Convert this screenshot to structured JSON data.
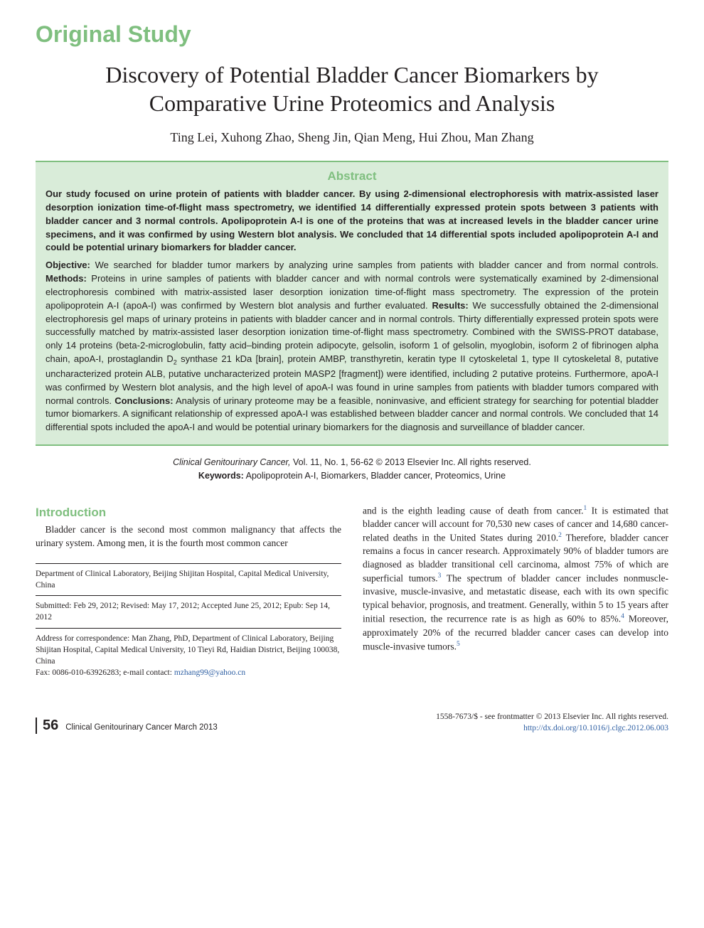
{
  "colors": {
    "accent": "#7fbf7f",
    "abstract_bg": "#d9ecd9",
    "abstract_border": "#7fbf7f",
    "link": "#2e5fa3",
    "text": "#231f20"
  },
  "header": {
    "section_label": "Original Study",
    "title": "Discovery of Potential Bladder Cancer Biomarkers by Comparative Urine Proteomics and Analysis",
    "authors": "Ting Lei, Xuhong Zhao, Sheng Jin, Qian Meng, Hui Zhou, Man Zhang"
  },
  "abstract": {
    "heading": "Abstract",
    "lead": "Our study focused on urine protein of patients with bladder cancer. By using 2-dimensional electrophoresis with matrix-assisted laser desorption ionization time-of-flight mass spectrometry, we identified 14 differentially expressed protein spots between 3 patients with bladder cancer and 3 normal controls. Apolipoprotein A-I is one of the proteins that was at increased levels in the bladder cancer urine specimens, and it was confirmed by using Western blot analysis. We concluded that 14 differential spots included apolipoprotein A-I and could be potential urinary biomarkers for bladder cancer.",
    "objective_label": "Objective:",
    "objective": " We searched for bladder tumor markers by analyzing urine samples from patients with bladder cancer and from normal controls. ",
    "methods_label": "Methods:",
    "methods": " Proteins in urine samples of patients with bladder cancer and with normal controls were systematically examined by 2-dimensional electrophoresis combined with matrix-assisted laser desorption ionization time-of-flight mass spectrometry. The expression of the protein apolipoprotein A-I (apoA-I) was confirmed by Western blot analysis and further evaluated. ",
    "results_label": "Results:",
    "results_a": " We successfully obtained the 2-dimensional electrophoresis gel maps of urinary proteins in patients with bladder cancer and in normal controls. Thirty differentially expressed protein spots were successfully matched by matrix-assisted laser desorption ionization time-of-flight mass spectrometry. Combined with the SWISS-PROT database, only 14 proteins (beta-2-microglobulin, fatty acid–binding protein adipocyte, gelsolin, isoform 1 of gelsolin, myoglobin, isoform 2 of fibrinogen alpha chain, apoA-I, prostaglandin D",
    "results_sub": "2",
    "results_b": " synthase 21 kDa [brain], protein AMBP, transthyretin, keratin type II cytoskeletal 1, type II cytoskeletal 8, putative uncharacterized protein ALB, putative uncharacterized protein MASP2 [fragment]) were identified, including 2 putative proteins. Furthermore, apoA-I was confirmed by Western blot analysis, and the high level of apoA-I was found in urine samples from patients with bladder tumors compared with normal controls. ",
    "conclusions_label": "Conclusions:",
    "conclusions": " Analysis of urinary proteome may be a feasible, noninvasive, and efficient strategy for searching for potential bladder tumor biomarkers. A significant relationship of expressed apoA-I was established between bladder cancer and normal controls. We concluded that 14 differential spots included the apoA-I and would be potential urinary biomarkers for the diagnosis and surveillance of bladder cancer."
  },
  "citation": {
    "journal": "Clinical Genitourinary Cancer,",
    "vol_info": " Vol. 11, No. 1, 56-62 © 2013 Elsevier Inc. All rights reserved.",
    "keywords_label": "Keywords:",
    "keywords": " Apolipoprotein A-I, Biomarkers, Bladder cancer, Proteomics, Urine"
  },
  "intro": {
    "heading": "Introduction",
    "p1": "Bladder cancer is the second most common malignancy that affects the urinary system. Among men, it is the fourth most common cancer",
    "p2_a": "and is the eighth leading cause of death from cancer.",
    "p2_b": " It is estimated that bladder cancer will account for 70,530 new cases of cancer and 14,680 cancer-related deaths in the United States during 2010.",
    "p2_c": " Therefore, bladder cancer remains a focus in cancer research. Approximately 90% of bladder tumors are diagnosed as bladder transitional cell carcinoma, almost 75% of which are superficial tumors.",
    "p2_d": " The spectrum of bladder cancer includes nonmuscle-invasive, muscle-invasive, and metastatic disease, each with its own specific typical behavior, prognosis, and treatment. Generally, within 5 to 15 years after initial resection, the recurrence rate is as high as 60% to 85%.",
    "p2_e": " Moreover, approximately 20% of the recurred bladder cancer cases can develop into muscle-invasive tumors.",
    "ref1": "1",
    "ref2": "2",
    "ref3": "3",
    "ref4": "4",
    "ref5": "5"
  },
  "meta": {
    "affiliation": "Department of Clinical Laboratory, Beijing Shijitan Hospital, Capital Medical University, China",
    "dates": "Submitted: Feb 29, 2012; Revised: May 17, 2012; Accepted June 25, 2012; Epub: Sep 14, 2012",
    "correspondence": "Address for correspondence: Man Zhang, PhD, Department of Clinical Laboratory, Beijing Shijitan Hospital, Capital Medical University, 10 Tieyi Rd, Haidian District, Beijing 100038, China",
    "fax": "Fax: 0086-010-63926283; e-mail contact: ",
    "email": "mzhang99@yahoo.cn"
  },
  "footer": {
    "page": "56",
    "journal": "Clinical Genitourinary Cancer",
    "issue_date": "   March 2013",
    "issn": "1558-7673/$ - see frontmatter © 2013 Elsevier Inc. All rights reserved.",
    "doi": "http://dx.doi.org/10.1016/j.clgc.2012.06.003"
  }
}
